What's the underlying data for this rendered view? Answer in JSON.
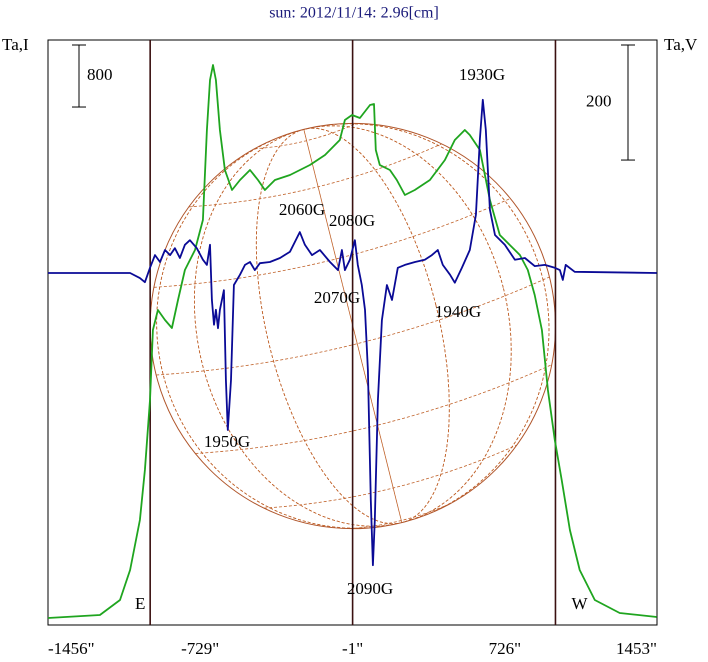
{
  "chart_data": {
    "type": "line",
    "title": "sun: 2012/11/14: 2.96[cm]",
    "ylabel": "Ta,I",
    "y2label": "Ta,V",
    "y_scale_bar": 800,
    "y2_scale_bar": 200,
    "xlim": [
      -1456,
      1453
    ],
    "xticks": [
      {
        "value": -1456,
        "label": "-1456\""
      },
      {
        "value": -729,
        "label": "-729\""
      },
      {
        "value": -1,
        "label": "-1\""
      },
      {
        "value": 726,
        "label": "726\""
      },
      {
        "value": 1453,
        "label": "1453\""
      }
    ],
    "ylim": [
      -90,
      7456
    ],
    "y2lim": [
      -612,
      405
    ],
    "grid": false,
    "limbs": [
      {
        "x": -968,
        "label": "E"
      },
      {
        "x": 968,
        "label": "W"
      }
    ],
    "series": [
      {
        "name": "Ta,I",
        "color": "#1fa51f",
        "x": [
          -1456,
          -1208,
          -1112,
          -1064,
          -1017,
          -993,
          -969,
          -955,
          -931,
          -897,
          -864,
          -835,
          -802,
          -754,
          -716,
          -697,
          -682,
          -668,
          -654,
          -635,
          -611,
          -577,
          -539,
          -491,
          -453,
          -420,
          -372,
          -300,
          -205,
          -133,
          -62,
          -38,
          -4,
          34,
          82,
          101,
          110,
          129,
          177,
          210,
          249,
          296,
          368,
          440,
          487,
          535,
          559,
          607,
          655,
          702,
          750,
          798,
          836,
          869,
          903,
          932,
          965,
          998,
          1037,
          1084,
          1156,
          1275,
          1452
        ],
        "values": [
          0,
          39,
          232,
          619,
          1264,
          1909,
          2812,
          3715,
          3973,
          3844,
          3741,
          4102,
          4489,
          4747,
          5134,
          6295,
          6940,
          7134,
          6940,
          6295,
          5779,
          5521,
          5650,
          5779,
          5650,
          5521,
          5650,
          5715,
          5844,
          5973,
          6166,
          6424,
          6489,
          6450,
          6618,
          6631,
          6037,
          5844,
          5779,
          5650,
          5457,
          5521,
          5650,
          5908,
          6166,
          6295,
          6231,
          6037,
          5392,
          4941,
          4812,
          4683,
          4489,
          4167,
          3715,
          2941,
          2296,
          1780,
          1135,
          619,
          232,
          65,
          13
        ]
      },
      {
        "name": "Ta,V",
        "color": "#0a0a96",
        "axis": "y2",
        "x": [
          -1456,
          -1064,
          -1017,
          -993,
          -969,
          -945,
          -921,
          -897,
          -873,
          -850,
          -826,
          -802,
          -778,
          -745,
          -716,
          -697,
          -682,
          -673,
          -663,
          -654,
          -644,
          -635,
          -616,
          -606,
          -597,
          -582,
          -568,
          -539,
          -515,
          -491,
          -468,
          -444,
          -396,
          -348,
          -300,
          -253,
          -229,
          -195,
          -157,
          -109,
          -71,
          -52,
          -38,
          -14,
          10,
          24,
          43,
          58,
          72,
          86,
          96,
          105,
          120,
          139,
          163,
          187,
          215,
          249,
          297,
          344,
          378,
          406,
          430,
          464,
          487,
          521,
          559,
          588,
          607,
          621,
          635,
          655,
          679,
          726,
          774,
          822,
          869,
          917,
          965,
          989,
          1003,
          1017,
          1060,
          1452
        ],
        "values": [
          0,
          0,
          -9,
          -16,
          9,
          31,
          19,
          40,
          31,
          43,
          26,
          49,
          57,
          43,
          23,
          14,
          49,
          -47,
          -90,
          -64,
          -96,
          -64,
          -30,
          -186,
          -273,
          -186,
          -21,
          -3,
          14,
          19,
          5,
          17,
          19,
          26,
          37,
          71,
          49,
          31,
          40,
          19,
          5,
          40,
          5,
          23,
          57,
          14,
          -21,
          -64,
          -169,
          -395,
          -508,
          -430,
          -221,
          -82,
          -21,
          -47,
          9,
          14,
          19,
          23,
          31,
          40,
          14,
          -3,
          -17,
          9,
          40,
          101,
          233,
          301,
          249,
          110,
          66,
          49,
          23,
          26,
          12,
          14,
          9,
          5,
          -12,
          14,
          2,
          0
        ]
      }
    ],
    "annotations": [
      "1930G",
      "2060G",
      "2080G",
      "2070G",
      "1940G",
      "1950G",
      "2090G"
    ]
  }
}
